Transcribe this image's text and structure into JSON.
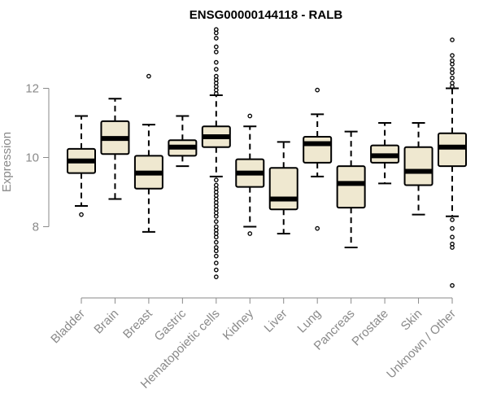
{
  "chart_data": {
    "type": "boxplot",
    "title": "ENSG00000144118 - RALB",
    "xlabel": "",
    "ylabel": "Expression",
    "ylim": [
      6.2,
      13.8
    ],
    "yticks": [
      8,
      10,
      12
    ],
    "box_color": "#efe8d0",
    "categories": [
      "Bladder",
      "Brain",
      "Breast",
      "Gastric",
      "Hematopoietic cells",
      "Kidney",
      "Liver",
      "Lung",
      "Pancreas",
      "Prostate",
      "Skin",
      "Unknown / Other"
    ],
    "boxes": [
      {
        "name": "Bladder",
        "whislo": 8.6,
        "q1": 9.55,
        "med": 9.9,
        "q3": 10.25,
        "whishi": 11.2,
        "outliers": [
          8.35
        ]
      },
      {
        "name": "Brain",
        "whislo": 8.8,
        "q1": 10.1,
        "med": 10.55,
        "q3": 11.05,
        "whishi": 11.7,
        "outliers": []
      },
      {
        "name": "Breast",
        "whislo": 7.85,
        "q1": 9.1,
        "med": 9.55,
        "q3": 10.05,
        "whishi": 10.95,
        "outliers": [
          12.35
        ]
      },
      {
        "name": "Gastric",
        "whislo": 9.75,
        "q1": 10.05,
        "med": 10.3,
        "q3": 10.5,
        "whishi": 11.2,
        "outliers": []
      },
      {
        "name": "Hematopoietic cells",
        "whislo": 9.45,
        "q1": 10.3,
        "med": 10.6,
        "q3": 10.9,
        "whishi": 11.8,
        "outliers": [
          13.7,
          13.6,
          13.45,
          13.2,
          13.05,
          12.75,
          12.55,
          12.35,
          12.25,
          12.15,
          12.05,
          11.95,
          11.85,
          9.35,
          9.2,
          9.1,
          9.0,
          8.9,
          8.8,
          8.7,
          8.6,
          8.5,
          8.4,
          8.3,
          8.15,
          8.0,
          7.9,
          7.8,
          7.7,
          7.55,
          7.4,
          7.3,
          7.15,
          6.95,
          6.75,
          6.55
        ]
      },
      {
        "name": "Kidney",
        "whislo": 8.0,
        "q1": 9.15,
        "med": 9.55,
        "q3": 9.95,
        "whishi": 10.9,
        "outliers": [
          11.2,
          7.8
        ]
      },
      {
        "name": "Liver",
        "whislo": 7.8,
        "q1": 8.5,
        "med": 8.8,
        "q3": 9.7,
        "whishi": 10.45,
        "outliers": []
      },
      {
        "name": "Lung",
        "whislo": 9.45,
        "q1": 9.85,
        "med": 10.4,
        "q3": 10.6,
        "whishi": 11.25,
        "outliers": [
          11.95,
          7.95
        ]
      },
      {
        "name": "Pancreas",
        "whislo": 7.4,
        "q1": 8.55,
        "med": 9.25,
        "q3": 9.75,
        "whishi": 10.75,
        "outliers": []
      },
      {
        "name": "Prostate",
        "whislo": 9.25,
        "q1": 9.85,
        "med": 10.05,
        "q3": 10.35,
        "whishi": 11.0,
        "outliers": []
      },
      {
        "name": "Skin",
        "whislo": 8.35,
        "q1": 9.2,
        "med": 9.6,
        "q3": 10.3,
        "whishi": 11.0,
        "outliers": []
      },
      {
        "name": "Unknown / Other",
        "whislo": 8.3,
        "q1": 9.75,
        "med": 10.3,
        "q3": 10.7,
        "whishi": 12.0,
        "outliers": [
          13.4,
          12.95,
          12.8,
          12.7,
          12.55,
          12.45,
          12.3,
          12.15,
          12.05,
          8.2,
          7.95,
          7.7,
          7.5,
          7.4,
          6.3
        ]
      }
    ]
  }
}
